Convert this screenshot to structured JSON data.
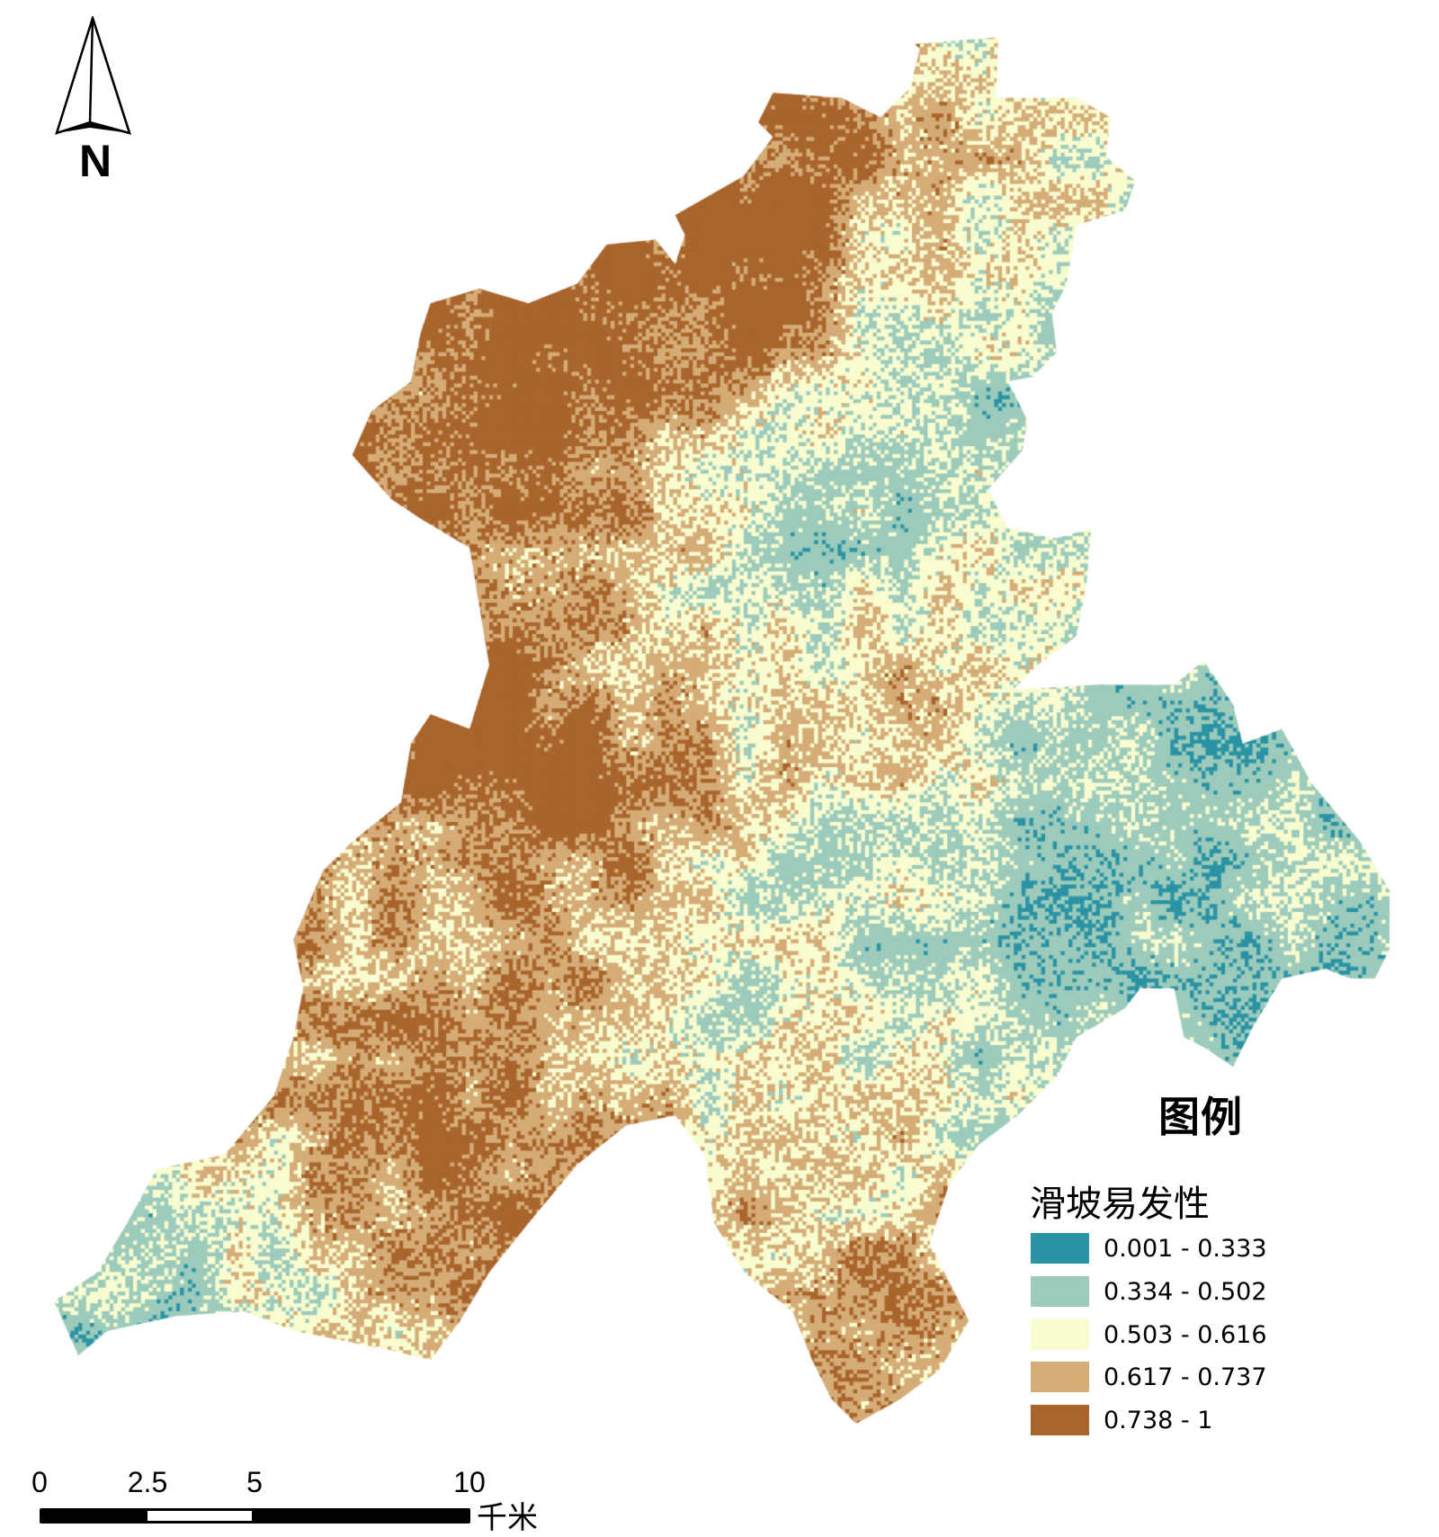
{
  "north_arrow": {
    "label": "N",
    "icon": "north-arrow-icon"
  },
  "legend": {
    "heading": "图例",
    "title": "滑坡易发性",
    "classes": [
      {
        "label": "0.001 - 0.333",
        "color": "#2a93a4"
      },
      {
        "label": "0.334 - 0.502",
        "color": "#9ccbbc"
      },
      {
        "label": "0.503 - 0.616",
        "color": "#f8fccf"
      },
      {
        "label": "0.617 - 0.737",
        "color": "#d5ac77"
      },
      {
        "label": "0.738 - 1",
        "color": "#a9652c"
      }
    ]
  },
  "scale_bar": {
    "ticks": [
      "0",
      "2.5",
      "5",
      "10"
    ],
    "unit": "千米"
  }
}
